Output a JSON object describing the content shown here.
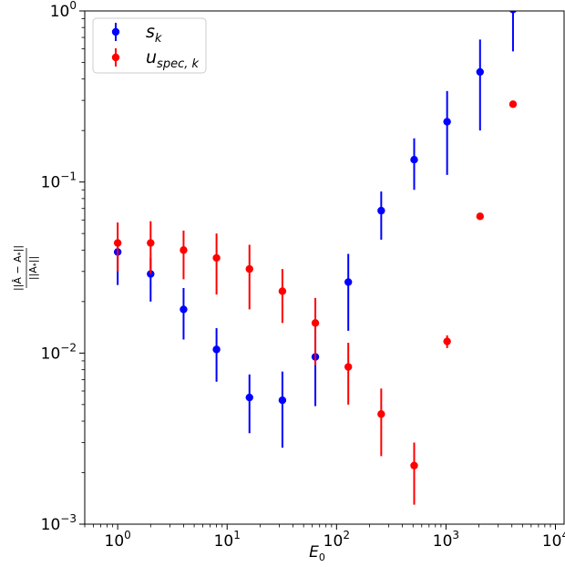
{
  "chart_data": {
    "type": "scatter",
    "title": "",
    "xlabel": "E_0",
    "ylabel": "||Â − A_*|| / ||A_*||",
    "xscale": "log",
    "yscale": "log",
    "xlim": [
      0.5,
      12000
    ],
    "ylim": [
      0.001,
      1
    ],
    "x_ticks": [
      {
        "value": 1,
        "base": "10",
        "exp": "0"
      },
      {
        "value": 10,
        "base": "10",
        "exp": "1"
      },
      {
        "value": 100,
        "base": "10",
        "exp": "2"
      },
      {
        "value": 1000,
        "base": "10",
        "exp": "3"
      },
      {
        "value": 10000,
        "base": "10",
        "exp": "4"
      }
    ],
    "y_ticks": [
      {
        "value": 0.001,
        "base": "10",
        "exp": "−3"
      },
      {
        "value": 0.01,
        "base": "10",
        "exp": "−2"
      },
      {
        "value": 0.1,
        "base": "10",
        "exp": "−1"
      },
      {
        "value": 1,
        "base": "10",
        "exp": "0"
      }
    ],
    "grid": false,
    "legend_position": "top-left",
    "series": [
      {
        "name": "s_k",
        "legend_main": "s",
        "legend_sub": "k",
        "color": "#0000ff",
        "points": [
          {
            "x": 1,
            "y": 0.039,
            "lo": 0.025,
            "hi": 0.045
          },
          {
            "x": 2,
            "y": 0.029,
            "lo": 0.02,
            "hi": 0.036
          },
          {
            "x": 4,
            "y": 0.018,
            "lo": 0.012,
            "hi": 0.024
          },
          {
            "x": 8,
            "y": 0.0105,
            "lo": 0.0068,
            "hi": 0.014
          },
          {
            "x": 16,
            "y": 0.0055,
            "lo": 0.0034,
            "hi": 0.0075
          },
          {
            "x": 32,
            "y": 0.0053,
            "lo": 0.0028,
            "hi": 0.0078
          },
          {
            "x": 64,
            "y": 0.0095,
            "lo": 0.0049,
            "hi": 0.015
          },
          {
            "x": 128,
            "y": 0.026,
            "lo": 0.0135,
            "hi": 0.038
          },
          {
            "x": 256,
            "y": 0.068,
            "lo": 0.046,
            "hi": 0.088
          },
          {
            "x": 512,
            "y": 0.135,
            "lo": 0.09,
            "hi": 0.18
          },
          {
            "x": 1024,
            "y": 0.225,
            "lo": 0.11,
            "hi": 0.34
          },
          {
            "x": 2048,
            "y": 0.44,
            "lo": 0.2,
            "hi": 0.68
          },
          {
            "x": 4096,
            "y": 1.02,
            "lo": 0.58,
            "hi": 1.4
          }
        ]
      },
      {
        "name": "u_spec,k",
        "legend_main": "u",
        "legend_sub": "spec, k",
        "color": "#ff0000",
        "points": [
          {
            "x": 1,
            "y": 0.044,
            "lo": 0.03,
            "hi": 0.058
          },
          {
            "x": 2,
            "y": 0.044,
            "lo": 0.029,
            "hi": 0.059
          },
          {
            "x": 4,
            "y": 0.04,
            "lo": 0.027,
            "hi": 0.052
          },
          {
            "x": 8,
            "y": 0.036,
            "lo": 0.022,
            "hi": 0.05
          },
          {
            "x": 16,
            "y": 0.031,
            "lo": 0.018,
            "hi": 0.043
          },
          {
            "x": 32,
            "y": 0.023,
            "lo": 0.015,
            "hi": 0.031
          },
          {
            "x": 64,
            "y": 0.015,
            "lo": 0.0085,
            "hi": 0.021
          },
          {
            "x": 128,
            "y": 0.0083,
            "lo": 0.005,
            "hi": 0.0115
          },
          {
            "x": 256,
            "y": 0.0044,
            "lo": 0.0025,
            "hi": 0.0062
          },
          {
            "x": 512,
            "y": 0.0022,
            "lo": 0.0013,
            "hi": 0.003
          },
          {
            "x": 1024,
            "y": 0.0117,
            "lo": 0.0107,
            "hi": 0.0127
          },
          {
            "x": 2048,
            "y": 0.063,
            "lo": 0.062,
            "hi": 0.065
          },
          {
            "x": 4096,
            "y": 0.285,
            "lo": 0.28,
            "hi": 0.29
          }
        ]
      }
    ]
  }
}
